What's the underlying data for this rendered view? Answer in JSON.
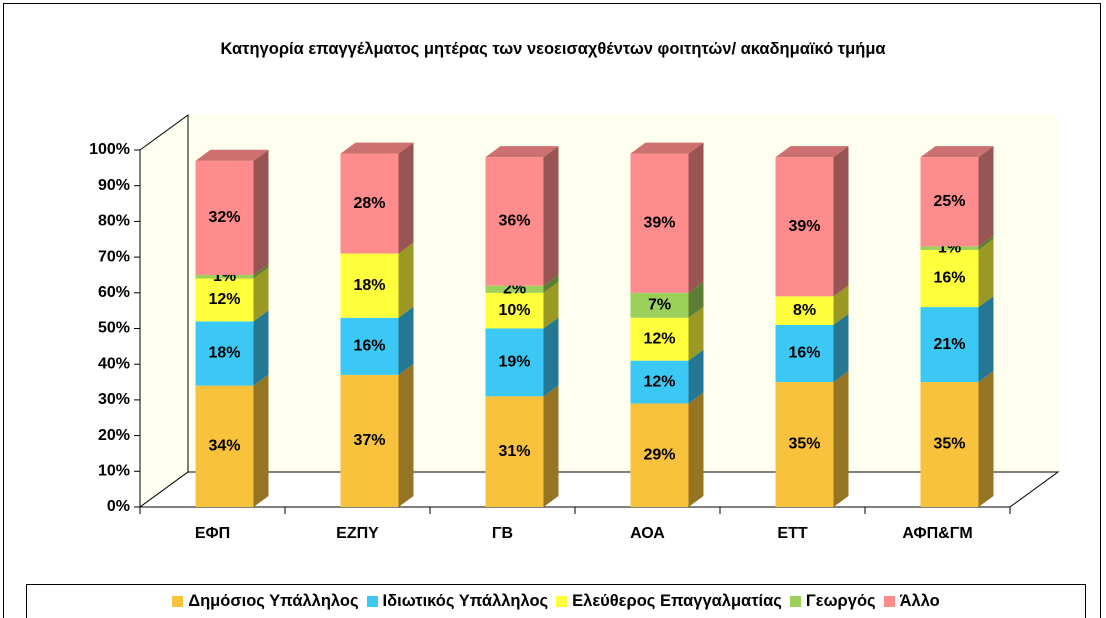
{
  "chart_data": {
    "type": "bar3d_stacked",
    "title": "Κατηγορία επαγγέλματος μητέρας των νεοεισαχθέντων φοιτητών/ ακαδημαϊκό τμήμα",
    "categories": [
      "ΕΦΠ",
      "ΕΖΠΥ",
      "ΓΒ",
      "ΑΟΑ",
      "ΕΤΤ",
      "ΑΦΠ&ΓΜ"
    ],
    "series": [
      {
        "name": "Δημόσιος Υπάλληλος",
        "color": "#f9c23c",
        "values": [
          34,
          37,
          31,
          29,
          35,
          35
        ],
        "value_labels": [
          "34%",
          "37%",
          "31%",
          "29%",
          "35%",
          "35%"
        ]
      },
      {
        "name": "Ιδιωτικός Υπάλληλος",
        "color": "#3cc8f5",
        "values": [
          18,
          16,
          19,
          12,
          16,
          21
        ],
        "value_labels": [
          "18%",
          "16%",
          "19%",
          "12%",
          "16%",
          "21%"
        ]
      },
      {
        "name": "Ελεύθερος Επαγγαλματίας",
        "color": "#ffff3c",
        "values": [
          12,
          18,
          10,
          12,
          8,
          16
        ],
        "value_labels": [
          "12%",
          "18%",
          "10%",
          "12%",
          "8%",
          "16%"
        ]
      },
      {
        "name": "Γεωργός",
        "color": "#9bd05a",
        "values": [
          1,
          0,
          2,
          7,
          0,
          1
        ],
        "value_labels": [
          "1%",
          null,
          "2%",
          "7%",
          null,
          "1%"
        ]
      },
      {
        "name": "Άλλο",
        "color": "#ff8c8c",
        "values": [
          32,
          28,
          36,
          39,
          39,
          25
        ],
        "value_labels": [
          "32%",
          "28%",
          "36%",
          "39%",
          "39%",
          "25%"
        ]
      }
    ],
    "ylim": [
      0,
      100
    ],
    "yticks": [
      {
        "value": 0,
        "label": "0%"
      },
      {
        "value": 10,
        "label": "10%"
      },
      {
        "value": 20,
        "label": "20%"
      },
      {
        "value": 30,
        "label": "30%"
      },
      {
        "value": 40,
        "label": "40%"
      },
      {
        "value": 50,
        "label": "50%"
      },
      {
        "value": 60,
        "label": "60%"
      },
      {
        "value": 70,
        "label": "70%"
      },
      {
        "value": 80,
        "label": "80%"
      },
      {
        "value": 90,
        "label": "90%"
      },
      {
        "value": 100,
        "label": "100%"
      }
    ],
    "legend": "bottom"
  }
}
